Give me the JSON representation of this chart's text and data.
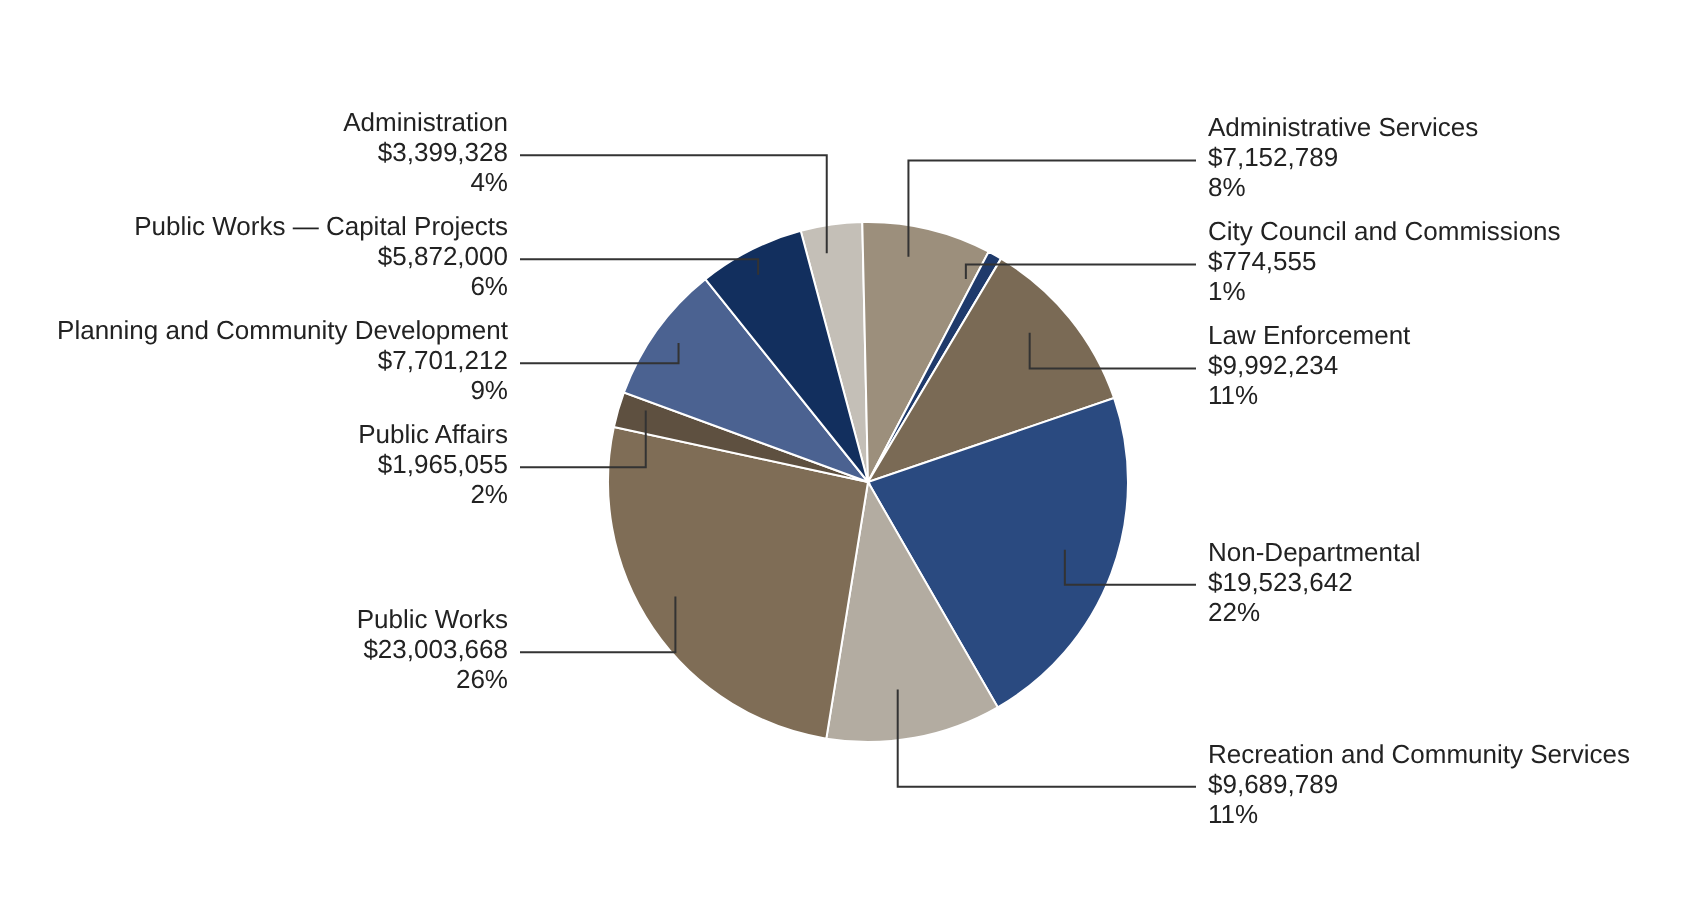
{
  "chart_data": {
    "type": "pie",
    "categories": [
      "Administration",
      "Administrative Services",
      "City Council and Commissions",
      "Law Enforcement",
      "Non-Departmental",
      "Recreation and Community Services",
      "Public Works",
      "Public Affairs",
      "Planning and Community Development",
      "Public Works — Capital Projects"
    ],
    "values": [
      3399328,
      7152789,
      774555,
      9992234,
      19523642,
      9689789,
      23003668,
      1965055,
      7701212,
      5872000
    ],
    "value_labels": [
      "$3,399,328\n4%",
      "$7,152,789\n8%",
      "$774,555\n1%",
      "$9,992,234\n11%",
      "$19,523,642\n22%",
      "$9,689,789\n11%",
      "$23,003,668\n26%",
      "$1,965,055\n2%",
      "$7,701,212\n9%",
      "$5,872,000\n6%"
    ],
    "colors": [
      "#c4bfb7",
      "#9c8f7c",
      "#1f3a6b",
      "#7a6a55",
      "#2a4a80",
      "#b3aca1",
      "#7f6d56",
      "#5e5040",
      "#4b6291",
      "#122f5e"
    ]
  }
}
